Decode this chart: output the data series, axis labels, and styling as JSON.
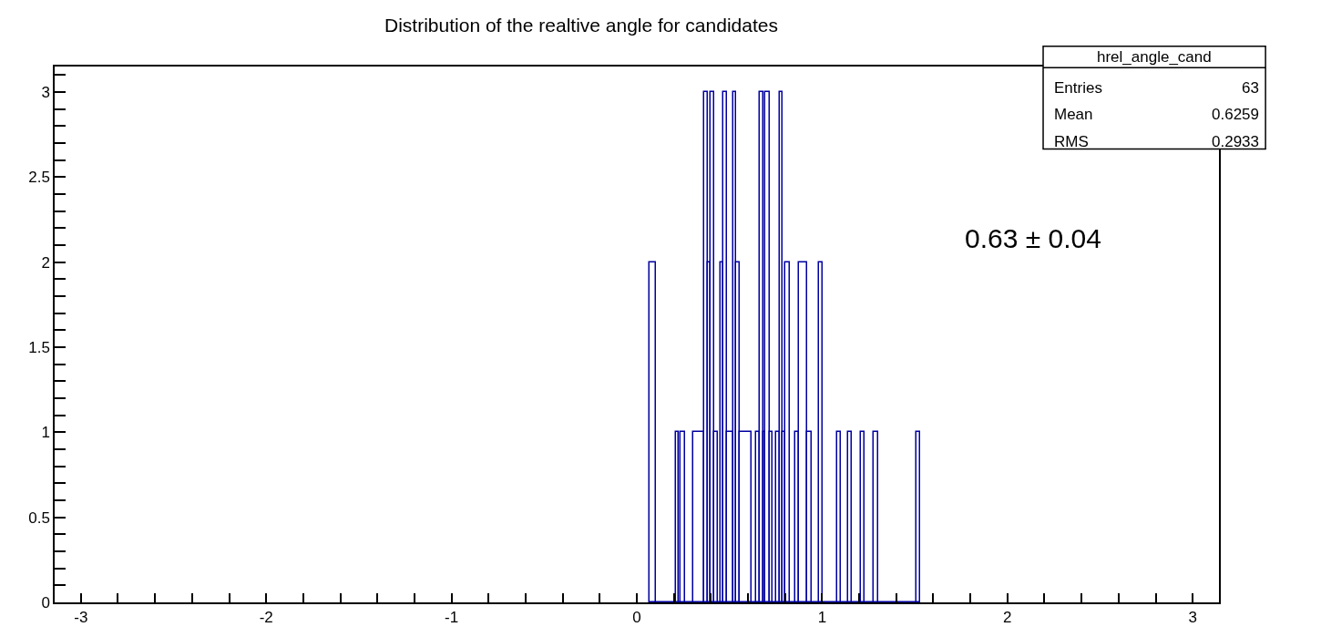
{
  "chart_data": {
    "type": "histogram",
    "title": "Distribution of the realtive angle for candidates",
    "bins": [
      0.07,
      0.101,
      0.209,
      0.228,
      0.237,
      0.26,
      0.307,
      0.366,
      0.385,
      0.4,
      0.417,
      0.436,
      0.452,
      0.465,
      0.488,
      0.522,
      0.537,
      0.556,
      0.617,
      0.645,
      0.664,
      0.683,
      0.693,
      0.717,
      0.731,
      0.753,
      0.772,
      0.787,
      0.803,
      0.825,
      0.854,
      0.873,
      0.917,
      0.943,
      0.981,
      1.004,
      1.08,
      1.102,
      1.139,
      1.161,
      1.209,
      1.231,
      1.277,
      1.302,
      1.507,
      1.53
    ],
    "values": [
      2,
      0,
      1,
      0,
      1,
      0,
      1,
      3,
      2,
      3,
      1,
      0,
      2,
      3,
      1,
      3,
      2,
      1,
      0,
      1,
      3,
      1,
      3,
      1,
      0,
      1,
      3,
      1,
      2,
      0,
      1,
      2,
      1,
      0,
      2,
      0,
      1,
      0,
      1,
      0,
      1,
      0,
      1,
      0,
      1
    ],
    "color": "#0000a0",
    "xlim": [
      -3.1416,
      3.1416
    ],
    "xticks": [
      -3,
      {
        "value": -2.8,
        "label": null
      },
      {
        "value": -2.6,
        "label": null
      },
      {
        "value": -2.4,
        "label": null
      },
      {
        "value": -2.2,
        "label": null
      },
      -2,
      {
        "value": -1.8,
        "label": null
      },
      {
        "value": -1.6,
        "label": null
      },
      {
        "value": -1.4,
        "label": null
      },
      {
        "value": -1.2,
        "label": null
      },
      -1,
      {
        "value": -0.8,
        "label": null
      },
      {
        "value": -0.6,
        "label": null
      },
      {
        "value": -0.4,
        "label": null
      },
      {
        "value": -0.2,
        "label": null
      },
      0,
      {
        "value": 0.2,
        "label": null
      },
      {
        "value": 0.4,
        "label": null
      },
      {
        "value": 0.6,
        "label": null
      },
      {
        "value": 0.8,
        "label": null
      },
      1,
      {
        "value": 1.2,
        "label": null
      },
      {
        "value": 1.4,
        "label": null
      },
      {
        "value": 1.6,
        "label": null
      },
      {
        "value": 1.8,
        "label": null
      },
      2,
      {
        "value": 2.2,
        "label": null
      },
      {
        "value": 2.4,
        "label": null
      },
      {
        "value": 2.6,
        "label": null
      },
      {
        "value": 2.8,
        "label": null
      },
      3
    ],
    "ylim": [
      0,
      3.15
    ],
    "yticks": [
      0,
      {
        "value": 0.1,
        "label": null
      },
      {
        "value": 0.2,
        "label": null
      },
      {
        "value": 0.3,
        "label": null
      },
      {
        "value": 0.4,
        "label": null
      },
      0.5,
      {
        "value": 0.6,
        "label": null
      },
      {
        "value": 0.7,
        "label": null
      },
      {
        "value": 0.8,
        "label": null
      },
      {
        "value": 0.9,
        "label": null
      },
      1,
      {
        "value": 1.1,
        "label": null
      },
      {
        "value": 1.2,
        "label": null
      },
      {
        "value": 1.3,
        "label": null
      },
      {
        "value": 1.4,
        "label": null
      },
      1.5,
      {
        "value": 1.6,
        "label": null
      },
      {
        "value": 1.7,
        "label": null
      },
      {
        "value": 1.8,
        "label": null
      },
      {
        "value": 1.9,
        "label": null
      },
      2,
      {
        "value": 2.1,
        "label": null
      },
      {
        "value": 2.2,
        "label": null
      },
      {
        "value": 2.3,
        "label": null
      },
      {
        "value": 2.4,
        "label": null
      },
      2.5,
      {
        "value": 2.6,
        "label": null
      },
      {
        "value": 2.7,
        "label": null
      },
      {
        "value": 2.8,
        "label": null
      },
      {
        "value": 2.9,
        "label": null
      },
      3,
      {
        "value": 3.1,
        "label": null
      }
    ],
    "annotations": [
      "hrel_angle_cand",
      "Entries",
      "63",
      "Mean",
      "0.6259",
      "RMS",
      "0.2933",
      "0.63 ± 0.04"
    ]
  }
}
